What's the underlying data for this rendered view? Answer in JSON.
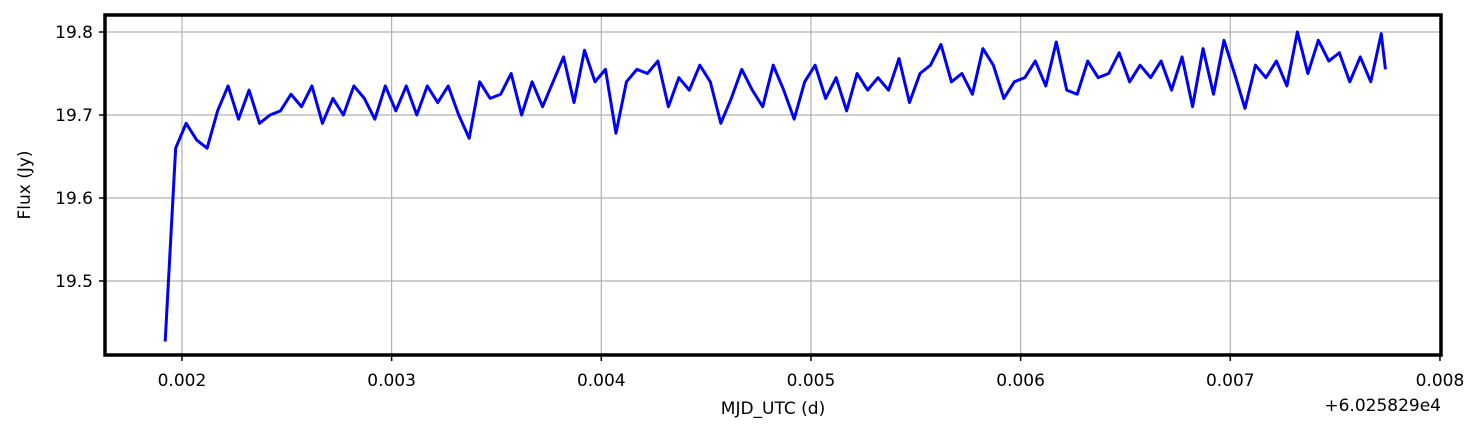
{
  "chart_data": {
    "type": "line",
    "xlabel": "MJD_UTC (d)",
    "ylabel": "Flux (Jy)",
    "x_offset_label": "+6.025829e4",
    "x": [
      0.00192,
      0.00197,
      0.00202,
      0.00207,
      0.00212,
      0.00217,
      0.00222,
      0.00227,
      0.00232,
      0.00237,
      0.00242,
      0.00247,
      0.00252,
      0.00257,
      0.00262,
      0.00267,
      0.00272,
      0.00277,
      0.00282,
      0.00287,
      0.00292,
      0.00297,
      0.00302,
      0.00307,
      0.00312,
      0.00317,
      0.00322,
      0.00327,
      0.00332,
      0.00337,
      0.00342,
      0.00347,
      0.00352,
      0.00357,
      0.00362,
      0.00367,
      0.00372,
      0.00377,
      0.00382,
      0.00387,
      0.00392,
      0.00397,
      0.00402,
      0.00407,
      0.00412,
      0.00417,
      0.00422,
      0.00427,
      0.00432,
      0.00437,
      0.00442,
      0.00447,
      0.00452,
      0.00457,
      0.00462,
      0.00467,
      0.00472,
      0.00477,
      0.00482,
      0.00487,
      0.00492,
      0.00497,
      0.00502,
      0.00507,
      0.00512,
      0.00517,
      0.00522,
      0.00527,
      0.00532,
      0.00537,
      0.00542,
      0.00547,
      0.00552,
      0.00557,
      0.00562,
      0.00567,
      0.00572,
      0.00577,
      0.00582,
      0.00587,
      0.00592,
      0.00597,
      0.00602,
      0.00607,
      0.00612,
      0.00617,
      0.00622,
      0.00627,
      0.00632,
      0.00637,
      0.00642,
      0.00647,
      0.00652,
      0.00657,
      0.00662,
      0.00667,
      0.00672,
      0.00677,
      0.00682,
      0.00687,
      0.00692,
      0.00697,
      0.00702,
      0.00707,
      0.00712,
      0.00717,
      0.00722,
      0.00727,
      0.00732,
      0.00737,
      0.00742,
      0.00747,
      0.00752,
      0.00757,
      0.00762,
      0.00767,
      0.00772,
      0.00774
    ],
    "series": [
      {
        "color": "#0000ff",
        "values": [
          19.427,
          19.66,
          19.69,
          19.67,
          19.66,
          19.705,
          19.735,
          19.695,
          19.73,
          19.69,
          19.7,
          19.705,
          19.725,
          19.71,
          19.735,
          19.69,
          19.72,
          19.7,
          19.735,
          19.72,
          19.695,
          19.735,
          19.705,
          19.735,
          19.7,
          19.735,
          19.715,
          19.735,
          19.7,
          19.672,
          19.74,
          19.72,
          19.725,
          19.75,
          19.7,
          19.74,
          19.71,
          19.74,
          19.77,
          19.715,
          19.778,
          19.74,
          19.755,
          19.678,
          19.74,
          19.755,
          19.75,
          19.765,
          19.71,
          19.745,
          19.73,
          19.76,
          19.74,
          19.69,
          19.72,
          19.755,
          19.73,
          19.71,
          19.76,
          19.73,
          19.695,
          19.74,
          19.76,
          19.72,
          19.745,
          19.705,
          19.75,
          19.73,
          19.745,
          19.73,
          19.768,
          19.715,
          19.75,
          19.76,
          19.785,
          19.74,
          19.75,
          19.725,
          19.78,
          19.76,
          19.72,
          19.74,
          19.745,
          19.765,
          19.735,
          19.788,
          19.73,
          19.725,
          19.765,
          19.745,
          19.75,
          19.775,
          19.74,
          19.76,
          19.745,
          19.765,
          19.73,
          19.77,
          19.71,
          19.78,
          19.725,
          19.79,
          19.75,
          19.708,
          19.76,
          19.745,
          19.765,
          19.735,
          19.8,
          19.75,
          19.79,
          19.765,
          19.775,
          19.74,
          19.77,
          19.74,
          19.798,
          19.755
        ]
      }
    ],
    "xlim": [
      0.001633,
      0.008005
    ],
    "ylim": [
      19.4108,
      19.8205
    ],
    "xticks": [
      0.002,
      0.003,
      0.004,
      0.005,
      0.006,
      0.007,
      0.008
    ],
    "yticks": [
      19.5,
      19.6,
      19.7,
      19.8
    ],
    "grid": true
  }
}
